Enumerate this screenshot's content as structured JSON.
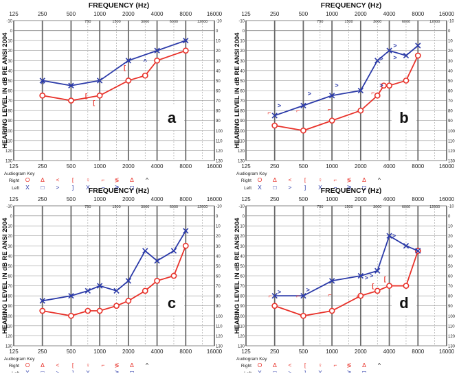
{
  "labels": {
    "frequency_title": "FREQUENCY (Hz)",
    "y_axis_label": "HEARING LEVEL IN dB RE ANSI 2004",
    "key_title": "Audiogram Key",
    "key_right": "Right",
    "key_left": "Left"
  },
  "axes": {
    "top_freqs": [
      "125",
      "250",
      "500",
      "1000",
      "2000",
      "4000",
      "8000",
      "16000"
    ],
    "mid_freqs": [
      "750",
      "1500",
      "3000",
      "6000",
      "12000"
    ],
    "bottom_freqs": [
      "125",
      "250",
      "500",
      "1000",
      "2000",
      "4000",
      "8000",
      "16000"
    ],
    "y_ticks": [
      "-10",
      "0",
      "10",
      "20",
      "30",
      "40",
      "50",
      "60",
      "70",
      "80",
      "90",
      "100",
      "110",
      "120",
      "130"
    ],
    "ylim": [
      -10,
      130
    ]
  },
  "colors": {
    "right": "#e8322a",
    "left": "#2b3aa8",
    "grid": "#9a9a9a",
    "grid_heavy": "#6a6a6a"
  },
  "key_symbols": {
    "right": [
      "O",
      "Δ",
      "<",
      "[",
      "♀",
      "⌐",
      "≶",
      "Δ",
      "^"
    ],
    "left": [
      "X",
      "□",
      ">",
      "]",
      "X",
      "¬",
      "≷",
      "◻"
    ]
  },
  "chart_data": [
    {
      "type": "line",
      "title": "",
      "panel_label": "a",
      "x": [
        "250",
        "500",
        "1000",
        "2000",
        "3000",
        "4000",
        "8000"
      ],
      "series": [
        {
          "name": "Right",
          "points": [
            [
              250,
              65
            ],
            [
              500,
              70
            ],
            [
              1000,
              65
            ],
            [
              2000,
              50
            ],
            [
              3000,
              45
            ],
            [
              4000,
              30
            ],
            [
              8000,
              20
            ]
          ]
        },
        {
          "name": "Left",
          "points": [
            [
              250,
              50
            ],
            [
              500,
              55
            ],
            [
              1000,
              50
            ],
            [
              2000,
              30
            ],
            [
              4000,
              20
            ],
            [
              8000,
              10
            ]
          ]
        }
      ],
      "bone_marks": [
        {
          "side": "right",
          "sym": "[",
          "f": 720,
          "db": 65
        },
        {
          "side": "right",
          "sym": "[",
          "f": 870,
          "db": 72
        },
        {
          "side": "right",
          "sym": "[",
          "f": 1830,
          "db": 37
        },
        {
          "side": "left",
          "sym": "^",
          "f": 250,
          "db": 53
        },
        {
          "side": "left",
          "sym": "^",
          "f": 3000,
          "db": 31
        },
        {
          "side": "left",
          "sym": ">",
          "f": 2000,
          "db": 30
        }
      ]
    },
    {
      "type": "line",
      "title": "",
      "panel_label": "b",
      "x": [
        "250",
        "500",
        "1000",
        "2000",
        "3000",
        "4000",
        "6000",
        "8000"
      ],
      "series": [
        {
          "name": "Right",
          "points": [
            [
              250,
              95
            ],
            [
              500,
              100
            ],
            [
              1000,
              90
            ],
            [
              2000,
              80
            ],
            [
              3000,
              65
            ],
            [
              3500,
              55
            ],
            [
              4000,
              55
            ],
            [
              6000,
              50
            ],
            [
              8000,
              25
            ]
          ]
        },
        {
          "name": "Left",
          "points": [
            [
              250,
              85
            ],
            [
              500,
              75
            ],
            [
              1000,
              65
            ],
            [
              2000,
              60
            ],
            [
              3000,
              30
            ],
            [
              4000,
              20
            ],
            [
              6000,
              25
            ],
            [
              8000,
              15
            ]
          ]
        }
      ],
      "bone_marks": [
        {
          "side": "right",
          "sym": "⌐",
          "f": 220,
          "db": 82
        },
        {
          "side": "right",
          "sym": "⌐",
          "f": 440,
          "db": 80
        },
        {
          "side": "right",
          "sym": "⌐",
          "f": 940,
          "db": 79
        },
        {
          "side": "right",
          "sym": "⌐",
          "f": 2700,
          "db": 62
        },
        {
          "side": "left",
          "sym": ">",
          "f": 280,
          "db": 75
        },
        {
          "side": "left",
          "sym": ">",
          "f": 580,
          "db": 63
        },
        {
          "side": "left",
          "sym": ">",
          "f": 1120,
          "db": 55
        },
        {
          "side": "left",
          "sym": ">",
          "f": 3300,
          "db": 28
        },
        {
          "side": "left",
          "sym": ">",
          "f": 3300,
          "db": 55
        },
        {
          "side": "left",
          "sym": ">",
          "f": 4600,
          "db": 15
        },
        {
          "side": "left",
          "sym": ">",
          "f": 4600,
          "db": 27
        }
      ]
    },
    {
      "type": "line",
      "title": "",
      "panel_label": "c",
      "x": [
        "250",
        "500",
        "750",
        "1000",
        "1500",
        "2000",
        "3000",
        "4000",
        "6000",
        "8000"
      ],
      "series": [
        {
          "name": "Right",
          "points": [
            [
              250,
              95
            ],
            [
              500,
              100
            ],
            [
              750,
              95
            ],
            [
              1000,
              95
            ],
            [
              1500,
              90
            ],
            [
              2000,
              85
            ],
            [
              3000,
              75
            ],
            [
              4000,
              65
            ],
            [
              6000,
              60
            ],
            [
              8000,
              30
            ]
          ]
        },
        {
          "name": "Left",
          "points": [
            [
              250,
              85
            ],
            [
              500,
              80
            ],
            [
              750,
              75
            ],
            [
              1000,
              70
            ],
            [
              1500,
              75
            ],
            [
              2000,
              65
            ],
            [
              3000,
              35
            ],
            [
              4000,
              45
            ],
            [
              6000,
              35
            ],
            [
              8000,
              15
            ]
          ]
        }
      ],
      "bone_marks": []
    },
    {
      "type": "line",
      "title": "",
      "panel_label": "d",
      "x": [
        "250",
        "500",
        "1000",
        "2000",
        "3000",
        "4000",
        "6000",
        "8000"
      ],
      "series": [
        {
          "name": "Right",
          "points": [
            [
              250,
              90
            ],
            [
              500,
              100
            ],
            [
              1000,
              95
            ],
            [
              2000,
              80
            ],
            [
              3000,
              75
            ],
            [
              4000,
              70
            ],
            [
              6000,
              70
            ],
            [
              8000,
              35
            ]
          ]
        },
        {
          "name": "Left",
          "points": [
            [
              250,
              80
            ],
            [
              500,
              80
            ],
            [
              1000,
              65
            ],
            [
              2000,
              60
            ],
            [
              3000,
              55
            ],
            [
              4000,
              20
            ],
            [
              6000,
              30
            ],
            [
              8000,
              35
            ]
          ]
        }
      ],
      "bone_marks": [
        {
          "side": "right",
          "sym": "⌐",
          "f": 225,
          "db": 80
        },
        {
          "side": "right",
          "sym": "⌐",
          "f": 440,
          "db": 80
        },
        {
          "side": "right",
          "sym": "⌐",
          "f": 950,
          "db": 79
        },
        {
          "side": "right",
          "sym": "⌐",
          "f": 1900,
          "db": 80
        },
        {
          "side": "right",
          "sym": "[",
          "f": 2700,
          "db": 70
        },
        {
          "side": "right",
          "sym": "[",
          "f": 3600,
          "db": 63
        },
        {
          "side": "left",
          "sym": ">",
          "f": 280,
          "db": 76
        },
        {
          "side": "left",
          "sym": ">",
          "f": 560,
          "db": 74
        },
        {
          "side": "left",
          "sym": ">",
          "f": 2300,
          "db": 62
        },
        {
          "side": "left",
          "sym": ">",
          "f": 2600,
          "db": 60
        },
        {
          "side": "left",
          "sym": ">",
          "f": 4500,
          "db": 20
        }
      ]
    }
  ]
}
